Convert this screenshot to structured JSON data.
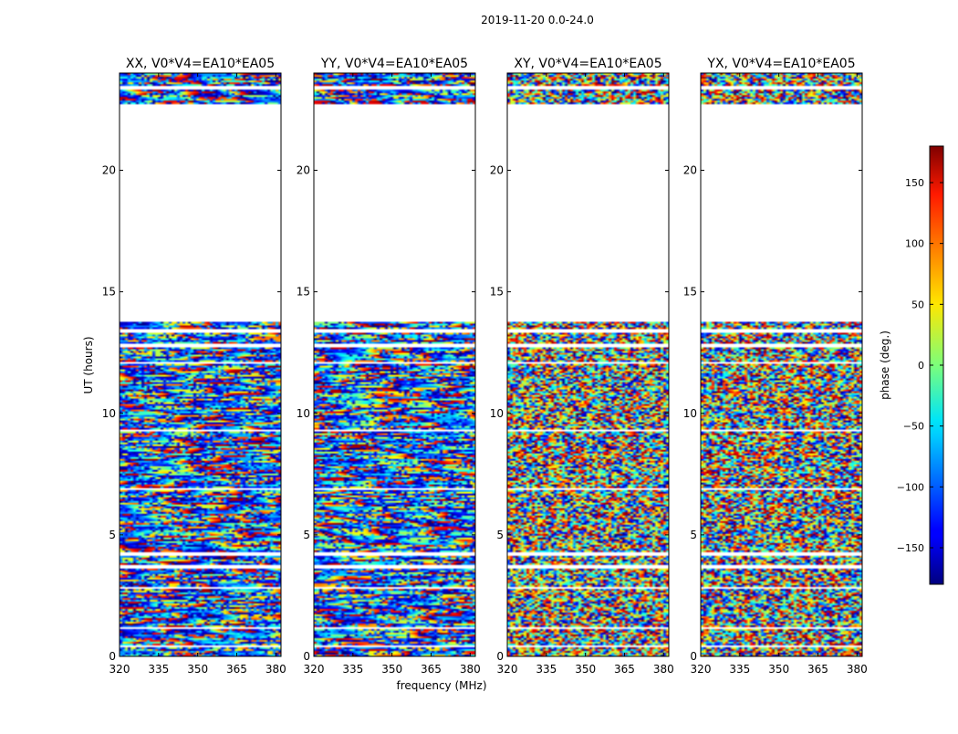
{
  "chart_data": {
    "type": "heatmap",
    "suptitle": "2019-11-20 0.0-24.0",
    "xlabel": "frequency (MHz)",
    "ylabel": "UT (hours)",
    "xlim": [
      320,
      382
    ],
    "ylim": [
      0,
      24
    ],
    "xticks": [
      320,
      335,
      350,
      365,
      380
    ],
    "yticks": [
      0,
      5,
      10,
      15,
      20
    ],
    "panels": [
      {
        "title": "XX, V0*V4=EA10*EA05",
        "pol": "XX"
      },
      {
        "title": "YY, V0*V4=EA10*EA05",
        "pol": "YY"
      },
      {
        "title": "XY, V0*V4=EA10*EA05",
        "pol": "XY"
      },
      {
        "title": "YX, V0*V4=EA10*EA05",
        "pol": "YX"
      }
    ],
    "data_ranges_ut": [
      [
        0.0,
        13.8
      ],
      [
        22.7,
        24.0
      ]
    ],
    "no_data_gaps_ut": [
      [
        0.35,
        0.45
      ],
      [
        1.1,
        1.2
      ],
      [
        2.75,
        2.85
      ],
      [
        3.6,
        3.75
      ],
      [
        4.15,
        4.3
      ],
      [
        6.85,
        6.95
      ],
      [
        9.25,
        9.35
      ],
      [
        12.05,
        12.15
      ],
      [
        12.75,
        12.85
      ],
      [
        13.35,
        13.45
      ],
      [
        13.8,
        22.7
      ],
      [
        23.35,
        23.5
      ]
    ],
    "colorbar": {
      "label": "phase (deg.)",
      "range": [
        -180,
        180
      ],
      "ticks": [
        -150,
        -100,
        -50,
        0,
        50,
        100,
        150
      ],
      "tick_labels": [
        "−150",
        "−100",
        "−50",
        "0",
        "50",
        "100",
        "150"
      ],
      "colormap": "jet"
    }
  }
}
